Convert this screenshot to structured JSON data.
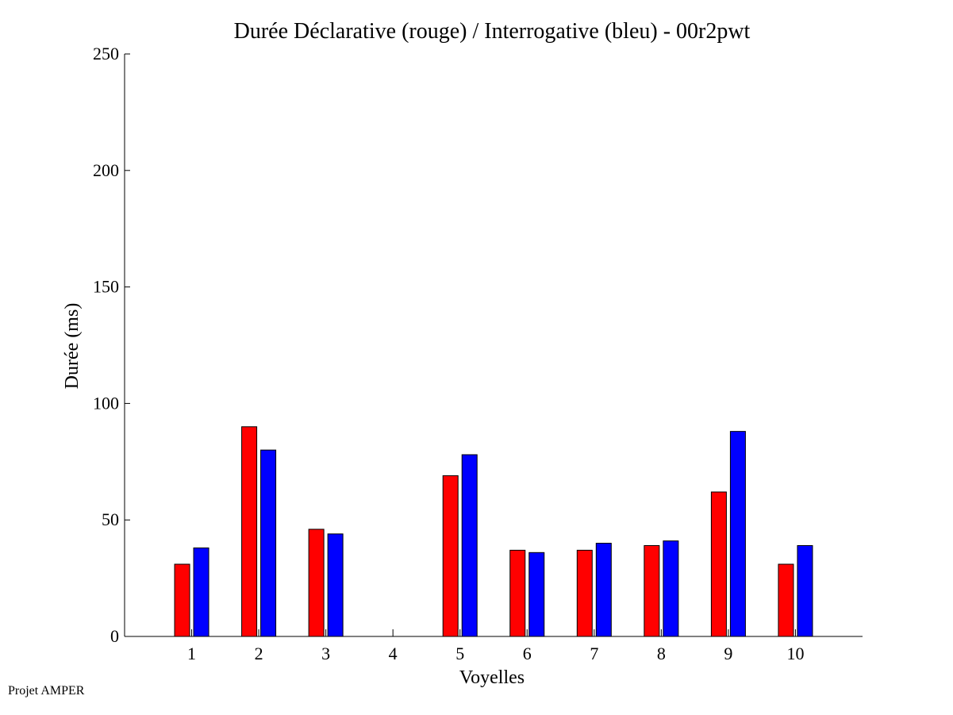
{
  "footer": {
    "note": "Projet AMPER"
  },
  "colors": {
    "declarative": "#ff0000",
    "interrogative": "#0000ff",
    "axis": "#000000",
    "background": "#ffffff"
  },
  "chart_data": {
    "type": "bar",
    "title": "Durée Déclarative (rouge) / Interrogative (bleu) - 00r2pwt",
    "xlabel": "Voyelles",
    "ylabel": "Durée (ms)",
    "categories": [
      "1",
      "2",
      "3",
      "4",
      "5",
      "6",
      "7",
      "8",
      "9",
      "10"
    ],
    "series": [
      {
        "color": "#ff0000",
        "values": [
          31,
          90,
          46,
          0,
          69,
          37,
          37,
          39,
          62,
          31
        ]
      },
      {
        "color": "#0000ff",
        "values": [
          38,
          80,
          44,
          0,
          78,
          36,
          40,
          41,
          88,
          39
        ]
      }
    ],
    "ylim": [
      0,
      250
    ],
    "yticks": [
      0,
      50,
      100,
      150,
      200,
      250
    ],
    "grid": false,
    "legend": "none"
  }
}
